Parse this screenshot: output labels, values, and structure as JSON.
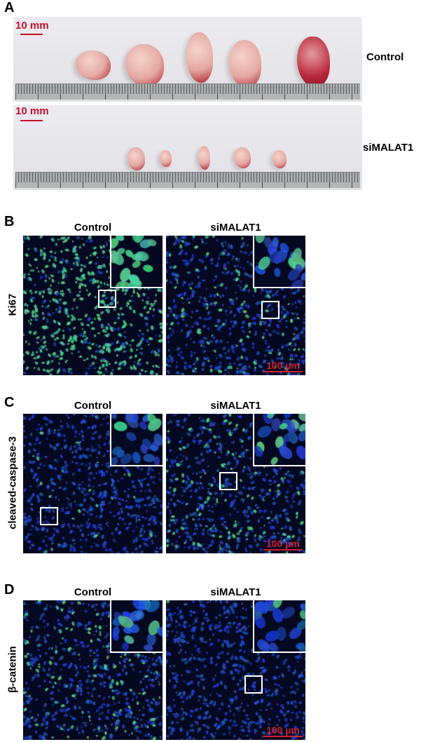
{
  "panels": {
    "A": {
      "label": "A",
      "scale_bar": "10 mm",
      "rows": [
        {
          "label": "Control",
          "tumor_count": 5
        },
        {
          "label": "siMALAT1",
          "tumor_count": 5
        }
      ]
    },
    "B": {
      "label": "B",
      "stain": "Ki67",
      "columns": [
        "Control",
        "siMALAT1"
      ],
      "scale_bar": "100 µm"
    },
    "C": {
      "label": "C",
      "stain": "cleaved-caspase-3",
      "columns": [
        "Control",
        "siMALAT1"
      ],
      "scale_bar": "100 µm"
    },
    "D": {
      "label": "D",
      "stain": "β-catenin",
      "columns": [
        "Control",
        "siMALAT1"
      ],
      "scale_bar": "100 µm"
    }
  },
  "colors": {
    "scale_bar": "#c8102e",
    "nuclei": "#1e3cc8",
    "marker": "#3cd26e"
  }
}
